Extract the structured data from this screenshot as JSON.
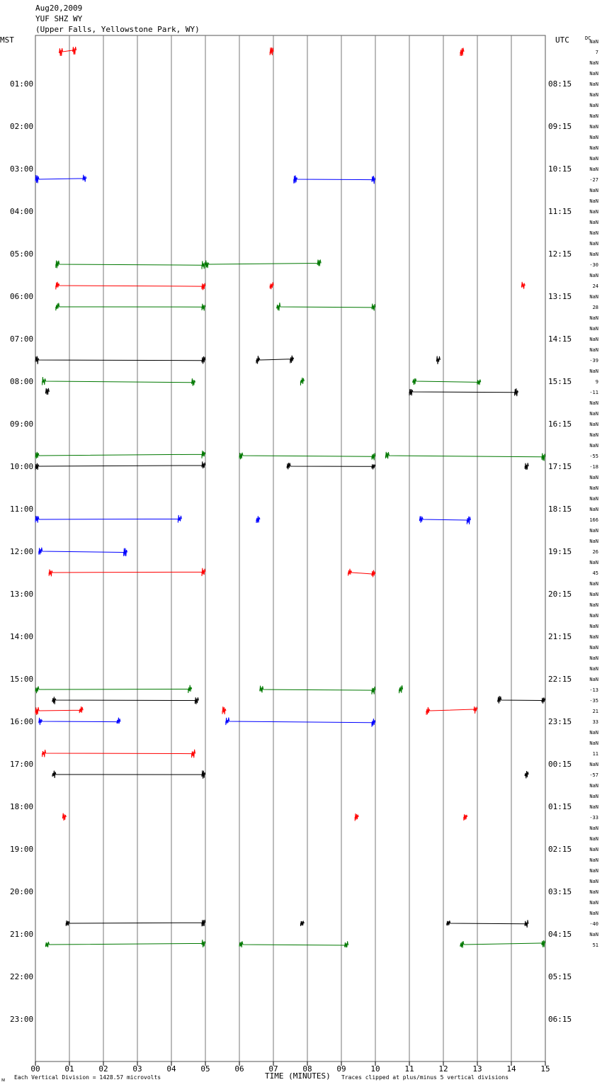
{
  "header": {
    "date": "Aug20,2009",
    "station": "YUF SHZ WY",
    "location": "(Upper Falls, Yellowstone Park, WY)"
  },
  "labels": {
    "left_tz": "MST",
    "right_tz": "UTC",
    "dc": "DC",
    "xlabel": "TIME (MINUTES)",
    "footer_left": "Each Vertical Division = 1428.57 microvolts",
    "footer_right": "Traces clipped at plus/minus 5 vertical divisions",
    "corner_mark": "ᴍ"
  },
  "chart_data": {
    "type": "line",
    "title": "YUF SHZ WY",
    "xlabel": "TIME (MINUTES)",
    "xlim": [
      0,
      15
    ],
    "x_ticks": [
      "00",
      "01",
      "02",
      "03",
      "04",
      "05",
      "06",
      "07",
      "08",
      "09",
      "10",
      "11",
      "12",
      "13",
      "14",
      "15"
    ],
    "mst_labels": [
      "01:00",
      "02:00",
      "03:00",
      "04:00",
      "05:00",
      "06:00",
      "07:00",
      "08:00",
      "09:00",
      "10:00",
      "11:00",
      "12:00",
      "13:00",
      "14:00",
      "15:00",
      "16:00",
      "17:00",
      "18:00",
      "19:00",
      "20:00",
      "21:00",
      "22:00",
      "23:00"
    ],
    "utc_labels": [
      "08:15",
      "09:15",
      "10:15",
      "11:15",
      "12:15",
      "13:15",
      "14:15",
      "15:15",
      "16:15",
      "17:15",
      "18:15",
      "19:15",
      "20:15",
      "21:15",
      "22:15",
      "23:15",
      "00:15",
      "01:15",
      "02:15",
      "03:15",
      "04:15",
      "05:15",
      "06:15"
    ],
    "dc_offsets": [
      "NaN",
      "7",
      "NaN",
      "NaN",
      "NaN",
      "NaN",
      "NaN",
      "NaN",
      "NaN",
      "NaN",
      "NaN",
      "NaN",
      "NaN",
      "-27",
      "NaN",
      "NaN",
      "NaN",
      "NaN",
      "NaN",
      "NaN",
      "NaN",
      "-30",
      "NaN",
      "24",
      "NaN",
      "28",
      "NaN",
      "NaN",
      "NaN",
      "NaN",
      "-39",
      "NaN",
      "9",
      "-11",
      "NaN",
      "NaN",
      "NaN",
      "NaN",
      "NaN",
      "-55",
      "-18",
      "NaN",
      "NaN",
      "NaN",
      "NaN",
      "166",
      "NaN",
      "NaN",
      "26",
      "NaN",
      "45",
      "NaN",
      "NaN",
      "NaN",
      "NaN",
      "NaN",
      "NaN",
      "NaN",
      "NaN",
      "NaN",
      "NaN",
      "-13",
      "-35",
      "21",
      "33",
      "NaN",
      "NaN",
      "11",
      "NaN",
      "-57",
      "NaN",
      "NaN",
      "NaN",
      "-33",
      "NaN",
      "NaN",
      "NaN",
      "NaN",
      "NaN",
      "NaN",
      "NaN",
      "NaN",
      "NaN",
      "-40",
      "NaN",
      "51"
    ],
    "trace_colors": [
      "#000000",
      "#ff0000",
      "#0000ff",
      "#007800"
    ],
    "grid": true,
    "segments": [
      {
        "row": 1,
        "x0": 0.7,
        "x1": 1.2,
        "c": 1
      },
      {
        "row": 1,
        "x0": 6.9,
        "x1": 7.0,
        "c": 1
      },
      {
        "row": 1,
        "x0": 12.5,
        "x1": 12.7,
        "c": 1
      },
      {
        "row": 13,
        "x0": 0.0,
        "x1": 1.5,
        "c": 2
      },
      {
        "row": 13,
        "x0": 7.6,
        "x1": 10.0,
        "c": 2
      },
      {
        "row": 21,
        "x0": 0.6,
        "x1": 5.0,
        "c": 3
      },
      {
        "row": 21,
        "x0": 5.0,
        "x1": 8.4,
        "c": 3
      },
      {
        "row": 23,
        "x0": 0.6,
        "x1": 5.0,
        "c": 1
      },
      {
        "row": 23,
        "x0": 6.9,
        "x1": 7.0,
        "c": 1
      },
      {
        "row": 23,
        "x0": 14.3,
        "x1": 14.4,
        "c": 1
      },
      {
        "row": 25,
        "x0": 0.6,
        "x1": 5.0,
        "c": 3
      },
      {
        "row": 25,
        "x0": 7.1,
        "x1": 10.0,
        "c": 3
      },
      {
        "row": 30,
        "x0": 0.0,
        "x1": 5.0,
        "c": 0
      },
      {
        "row": 30,
        "x0": 6.5,
        "x1": 7.6,
        "c": 0
      },
      {
        "row": 30,
        "x0": 11.8,
        "x1": 11.9,
        "c": 0
      },
      {
        "row": 32,
        "x0": 0.2,
        "x1": 4.7,
        "c": 3
      },
      {
        "row": 32,
        "x0": 7.8,
        "x1": 7.9,
        "c": 3
      },
      {
        "row": 32,
        "x0": 11.1,
        "x1": 13.1,
        "c": 3
      },
      {
        "row": 33,
        "x0": 0.3,
        "x1": 0.5,
        "c": 0
      },
      {
        "row": 33,
        "x0": 11.0,
        "x1": 14.2,
        "c": 0
      },
      {
        "row": 39,
        "x0": 0.0,
        "x1": 5.0,
        "c": 3
      },
      {
        "row": 39,
        "x0": 6.0,
        "x1": 10.0,
        "c": 3
      },
      {
        "row": 39,
        "x0": 10.3,
        "x1": 15.0,
        "c": 3
      },
      {
        "row": 40,
        "x0": 0.0,
        "x1": 5.0,
        "c": 0
      },
      {
        "row": 40,
        "x0": 7.4,
        "x1": 10.0,
        "c": 0
      },
      {
        "row": 40,
        "x0": 14.4,
        "x1": 14.5,
        "c": 0
      },
      {
        "row": 45,
        "x0": 0.0,
        "x1": 4.3,
        "c": 2
      },
      {
        "row": 45,
        "x0": 6.5,
        "x1": 6.6,
        "c": 2
      },
      {
        "row": 45,
        "x0": 11.3,
        "x1": 12.8,
        "c": 2
      },
      {
        "row": 48,
        "x0": 0.1,
        "x1": 2.7,
        "c": 2
      },
      {
        "row": 50,
        "x0": 0.4,
        "x1": 5.0,
        "c": 1
      },
      {
        "row": 50,
        "x0": 9.2,
        "x1": 10.0,
        "c": 1
      },
      {
        "row": 61,
        "x0": 0.0,
        "x1": 4.6,
        "c": 3
      },
      {
        "row": 61,
        "x0": 6.6,
        "x1": 10.0,
        "c": 3
      },
      {
        "row": 61,
        "x0": 10.7,
        "x1": 10.8,
        "c": 3
      },
      {
        "row": 62,
        "x0": 0.5,
        "x1": 4.8,
        "c": 0
      },
      {
        "row": 62,
        "x0": 13.6,
        "x1": 15.0,
        "c": 0
      },
      {
        "row": 63,
        "x0": 0.0,
        "x1": 1.4,
        "c": 1
      },
      {
        "row": 63,
        "x0": 5.5,
        "x1": 5.7,
        "c": 1
      },
      {
        "row": 63,
        "x0": 11.5,
        "x1": 13.0,
        "c": 1
      },
      {
        "row": 64,
        "x0": 0.1,
        "x1": 2.5,
        "c": 2
      },
      {
        "row": 64,
        "x0": 5.6,
        "x1": 10.0,
        "c": 2
      },
      {
        "row": 67,
        "x0": 0.2,
        "x1": 4.7,
        "c": 1
      },
      {
        "row": 69,
        "x0": 0.5,
        "x1": 5.0,
        "c": 0
      },
      {
        "row": 69,
        "x0": 14.4,
        "x1": 14.5,
        "c": 0
      },
      {
        "row": 73,
        "x0": 0.8,
        "x1": 1.0,
        "c": 1
      },
      {
        "row": 73,
        "x0": 9.4,
        "x1": 9.6,
        "c": 1
      },
      {
        "row": 73,
        "x0": 12.6,
        "x1": 12.8,
        "c": 1
      },
      {
        "row": 83,
        "x0": 0.9,
        "x1": 5.0,
        "c": 0
      },
      {
        "row": 83,
        "x0": 7.8,
        "x1": 7.9,
        "c": 0
      },
      {
        "row": 83,
        "x0": 12.1,
        "x1": 14.5,
        "c": 0
      },
      {
        "row": 85,
        "x0": 0.3,
        "x1": 5.0,
        "c": 3
      },
      {
        "row": 85,
        "x0": 6.0,
        "x1": 9.2,
        "c": 3
      },
      {
        "row": 85,
        "x0": 12.5,
        "x1": 15.0,
        "c": 3
      }
    ]
  }
}
